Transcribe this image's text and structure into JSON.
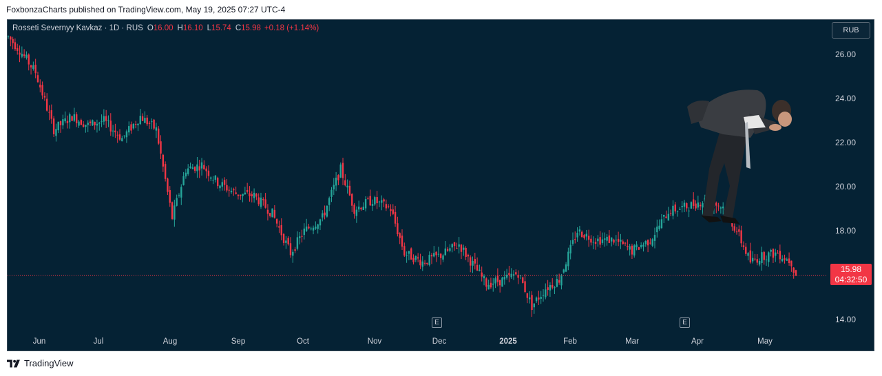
{
  "header": {
    "published": "FoxbonzaCharts published on TradingView.com, May 19, 2025 07:27 UTC-4"
  },
  "legend": {
    "symbol": "Rosseti Severnyy Kavkaz · 1D · RUS",
    "o_label": "O",
    "o": "16.00",
    "h_label": "H",
    "h": "16.10",
    "l_label": "L",
    "l": "15.74",
    "c_label": "C",
    "c": "15.98",
    "change": "+0.18 (+1.14%)"
  },
  "currency": "RUB",
  "price_tag": {
    "price": "15.98",
    "countdown": "04:32:50"
  },
  "earnings_marker": "E",
  "footer": {
    "brand": "TradingView"
  },
  "colors": {
    "up": "#26a69a",
    "down": "#f23645",
    "bg": "#052234"
  },
  "chart_data": {
    "type": "candlestick",
    "y_ticks": [
      "26.00",
      "24.00",
      "22.00",
      "20.00",
      "18.00",
      "14.00"
    ],
    "ylim": [
      13.3,
      27.6
    ],
    "x_ticks": [
      "Jun",
      "Jul",
      "Aug",
      "Sep",
      "Oct",
      "Nov",
      "Dec",
      "2025",
      "Feb",
      "Mar",
      "Apr",
      "May"
    ],
    "last_price": 15.98,
    "earnings": [
      "Dec",
      "Apr"
    ],
    "path_close": [
      [
        0,
        26.8
      ],
      [
        5,
        26.2
      ],
      [
        12,
        25.2
      ],
      [
        20,
        22.6
      ],
      [
        28,
        23.2
      ],
      [
        35,
        22.8
      ],
      [
        42,
        23.0
      ],
      [
        50,
        22.2
      ],
      [
        58,
        23.2
      ],
      [
        65,
        22.6
      ],
      [
        72,
        18.6
      ],
      [
        78,
        20.8
      ],
      [
        85,
        21.0
      ],
      [
        92,
        20.2
      ],
      [
        100,
        19.7
      ],
      [
        108,
        19.6
      ],
      [
        116,
        18.8
      ],
      [
        124,
        17.0
      ],
      [
        130,
        18.0
      ],
      [
        138,
        18.6
      ],
      [
        146,
        20.8
      ],
      [
        152,
        19.0
      ],
      [
        160,
        19.4
      ],
      [
        168,
        19.0
      ],
      [
        174,
        17.0
      ],
      [
        182,
        16.6
      ],
      [
        190,
        16.9
      ],
      [
        198,
        17.4
      ],
      [
        204,
        16.5
      ],
      [
        210,
        15.6
      ],
      [
        218,
        15.8
      ],
      [
        224,
        16.1
      ],
      [
        230,
        14.6
      ],
      [
        236,
        15.4
      ],
      [
        242,
        15.8
      ],
      [
        250,
        18.0
      ],
      [
        258,
        17.6
      ],
      [
        266,
        17.6
      ],
      [
        274,
        17.1
      ],
      [
        282,
        17.6
      ],
      [
        290,
        18.9
      ],
      [
        298,
        19.1
      ],
      [
        306,
        19.4
      ],
      [
        314,
        19.1
      ],
      [
        320,
        18.0
      ],
      [
        326,
        16.6
      ],
      [
        332,
        16.9
      ],
      [
        338,
        17.0
      ],
      [
        344,
        16.6
      ],
      [
        346,
        15.98
      ]
    ]
  }
}
